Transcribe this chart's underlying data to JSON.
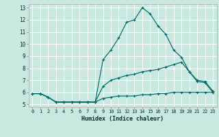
{
  "xlabel": "Humidex (Indice chaleur)",
  "background_color": "#c9e8e0",
  "line_color": "#006868",
  "grid_color": "#ffffff",
  "hours": [
    0,
    1,
    2,
    3,
    4,
    5,
    6,
    7,
    8,
    9,
    10,
    11,
    12,
    13,
    14,
    15,
    16,
    17,
    18,
    19,
    20,
    21,
    22,
    23
  ],
  "line1": [
    5.9,
    5.9,
    5.6,
    5.2,
    5.2,
    5.2,
    5.2,
    5.2,
    5.2,
    8.7,
    9.5,
    10.5,
    11.8,
    12.0,
    13.0,
    12.5,
    11.5,
    10.8,
    9.5,
    8.9,
    7.7,
    6.9,
    6.8,
    6.0
  ],
  "line2": [
    5.9,
    5.9,
    5.6,
    5.2,
    5.2,
    5.2,
    5.2,
    5.2,
    5.2,
    6.5,
    7.0,
    7.2,
    7.4,
    7.5,
    7.7,
    7.8,
    7.9,
    8.1,
    8.3,
    8.5,
    7.7,
    7.0,
    6.9,
    6.1
  ],
  "line3": [
    5.9,
    5.9,
    5.6,
    5.2,
    5.2,
    5.2,
    5.2,
    5.2,
    5.2,
    5.5,
    5.6,
    5.7,
    5.7,
    5.7,
    5.8,
    5.8,
    5.9,
    5.9,
    6.0,
    6.0,
    6.0,
    6.0,
    6.0,
    6.0
  ],
  "yticks": [
    5,
    6,
    7,
    8,
    9,
    10,
    11,
    12,
    13
  ],
  "xticks": [
    0,
    1,
    2,
    3,
    4,
    5,
    6,
    7,
    8,
    9,
    10,
    11,
    12,
    13,
    14,
    15,
    16,
    17,
    18,
    19,
    20,
    21,
    22,
    23
  ],
  "xlim": [
    -0.5,
    23.5
  ],
  "ylim": [
    4.8,
    13.3
  ]
}
